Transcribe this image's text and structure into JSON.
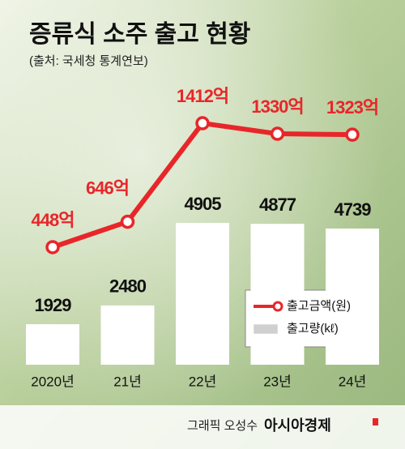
{
  "chart_data": {
    "type": "combo",
    "title": "증류식 소주 출고 현황",
    "subtitle": "(출처: 국세청 통계연보)",
    "categories": [
      "2020년",
      "21년",
      "22년",
      "23년",
      "24년"
    ],
    "series": [
      {
        "name": "출고금액(원)",
        "type": "line",
        "color": "#e8262a",
        "axis": "y2",
        "values": [
          448,
          646,
          1412,
          1330,
          1323
        ],
        "value_labels": [
          "448억",
          "646억",
          "1412억",
          "1330억",
          "1323억"
        ]
      },
      {
        "name": "출고량(kℓ)",
        "type": "bar",
        "color": "#ffffff",
        "values": [
          1929,
          2480,
          4905,
          4877,
          4739
        ]
      }
    ],
    "ylim": [
      740,
      9070
    ],
    "y2lim": [
      -466,
      1740
    ],
    "credit": "그래픽 오성수",
    "source": "아시아경제"
  }
}
